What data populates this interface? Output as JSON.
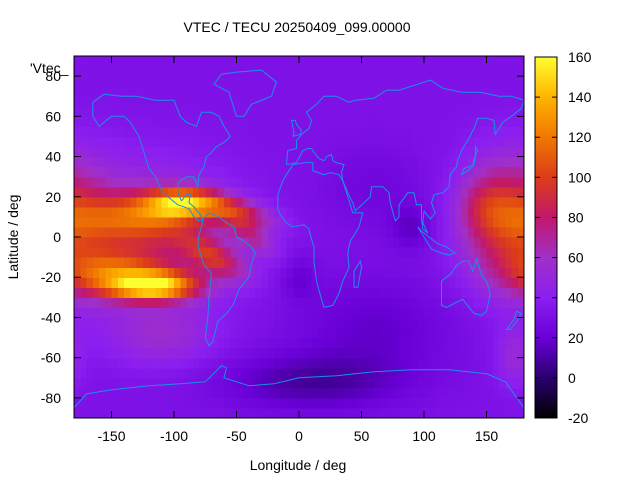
{
  "chart_data": {
    "type": "heatmap",
    "title": "VTEC / TECU 20250409_099.00000",
    "xlabel": "Longitude / deg",
    "ylabel": "Latitude / deg",
    "legend_entry": "'Vtec_",
    "xlim": [
      -180,
      180
    ],
    "ylim": [
      -90,
      90
    ],
    "xticks": [
      -150,
      -100,
      -50,
      0,
      50,
      100,
      150
    ],
    "yticks": [
      -80,
      -60,
      -40,
      -20,
      0,
      20,
      40,
      60,
      80
    ],
    "colorbar": {
      "range": [
        -20,
        160
      ],
      "ticks": [
        -20,
        0,
        20,
        40,
        60,
        80,
        100,
        120,
        140,
        160
      ]
    },
    "colormap": [
      "#000000",
      "#2a006e",
      "#6a00d8",
      "#8b1ef0",
      "#a030c8",
      "#c2186a",
      "#dc3c1a",
      "#f07800",
      "#ffb400",
      "#ffff30"
    ],
    "background_level": 32,
    "features": [
      {
        "lon": -95,
        "lat": 17,
        "amp": 80,
        "slon": 20,
        "slat": 5,
        "tilt": 0.0
      },
      {
        "lon": -130,
        "lat": 10,
        "amp": 48,
        "slon": 35,
        "slat": 8,
        "tilt": 0.0
      },
      {
        "lon": -52,
        "lat": 13,
        "amp": 50,
        "slon": 22,
        "slat": 5,
        "tilt": -0.15
      },
      {
        "lon": -115,
        "lat": -24,
        "amp": 100,
        "slon": 24,
        "slat": 5,
        "tilt": 0.0
      },
      {
        "lon": -150,
        "lat": -18,
        "amp": 55,
        "slon": 28,
        "slat": 8,
        "tilt": 0.0
      },
      {
        "lon": -68,
        "lat": -10,
        "amp": 48,
        "slon": 18,
        "slat": 6,
        "tilt": -0.25
      },
      {
        "lon": -38,
        "lat": 0,
        "amp": 30,
        "slon": 14,
        "slat": 5,
        "tilt": -0.3
      },
      {
        "lon": -120,
        "lat": 0,
        "amp": 38,
        "slon": 45,
        "slat": 24,
        "tilt": 0.0
      },
      {
        "lon": 168,
        "lat": 8,
        "amp": 58,
        "slon": 26,
        "slat": 22,
        "tilt": 0.0
      },
      {
        "lon": 148,
        "lat": 16,
        "amp": 20,
        "slon": 14,
        "slat": 10,
        "tilt": 0.0
      },
      {
        "lon": -110,
        "lat": -50,
        "amp": 20,
        "slon": 30,
        "slat": 10,
        "tilt": 0.0
      },
      {
        "lon": 172,
        "lat": -60,
        "amp": 20,
        "slon": 10,
        "slat": 10,
        "tilt": 0.0
      },
      {
        "lon": 60,
        "lat": 25,
        "amp": -8,
        "slon": 30,
        "slat": 15,
        "tilt": 0.0
      },
      {
        "lon": 90,
        "lat": 5,
        "amp": -15,
        "slon": 12,
        "slat": 8,
        "tilt": 0.0
      },
      {
        "lon": 0,
        "lat": -20,
        "amp": -12,
        "slon": 10,
        "slat": 8,
        "tilt": 0.0
      },
      {
        "lon": 60,
        "lat": -45,
        "amp": -14,
        "slon": 45,
        "slat": 18,
        "tilt": 0.0
      },
      {
        "lon": 10,
        "lat": -72,
        "amp": -22,
        "slon": 50,
        "slat": 10,
        "tilt": 0.0
      }
    ]
  }
}
